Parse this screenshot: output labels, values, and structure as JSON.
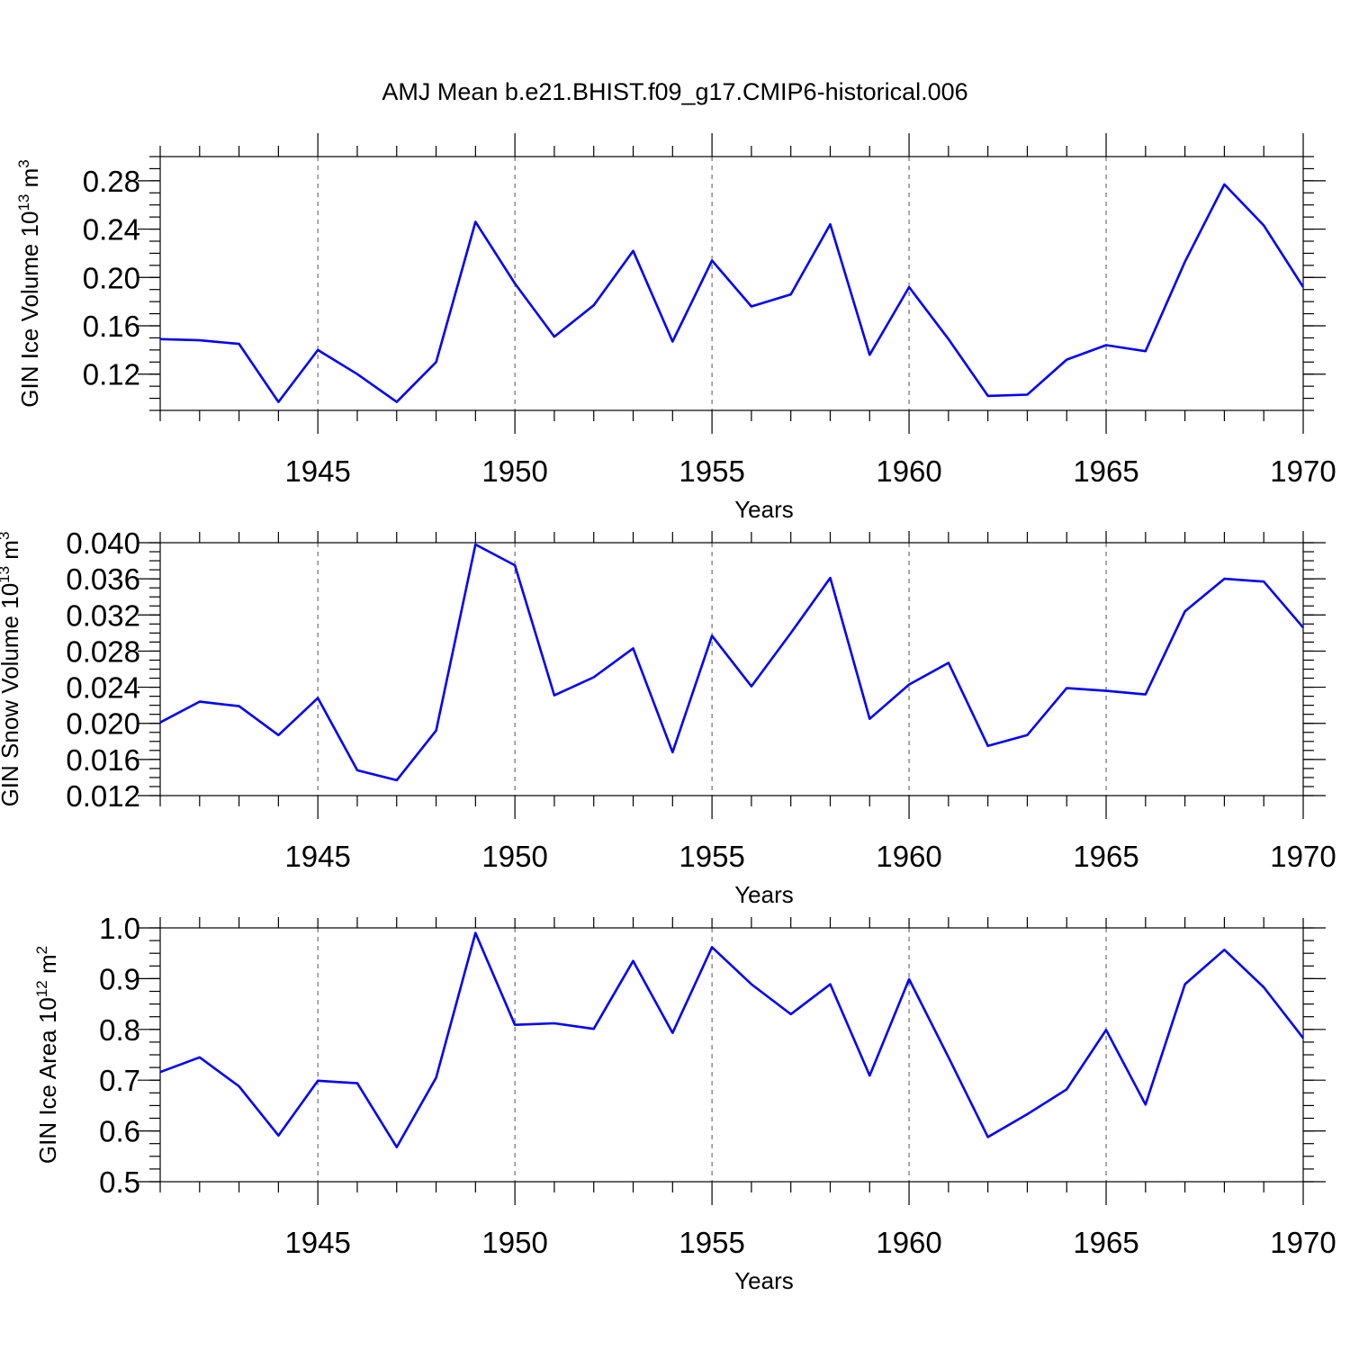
{
  "title": "AMJ Mean b.e21.BHIST.f09_g17.CMIP6-historical.006",
  "chart_data": [
    {
      "type": "line",
      "name": "ice-volume",
      "ylabel": "GIN Ice Volume 10",
      "ylabel_exp": "13",
      "ylabel_unit": " m",
      "ylabel_unit_exp": "3",
      "xlabel": "Years",
      "xlim": [
        1941,
        1970
      ],
      "ylim": [
        0.09,
        0.3
      ],
      "xticks": [
        "1945",
        "1950",
        "1955",
        "1960",
        "1965",
        "1970"
      ],
      "yticks": [
        "0.12",
        "0.16",
        "0.20",
        "0.24",
        "0.28"
      ],
      "grid": "vertical-dashed",
      "series": [
        {
          "name": "GIN Ice Volume",
          "color": "#0000ff",
          "x": [
            1941,
            1942,
            1943,
            1944,
            1945,
            1946,
            1947,
            1948,
            1949,
            1950,
            1951,
            1952,
            1953,
            1954,
            1955,
            1956,
            1957,
            1958,
            1959,
            1960,
            1961,
            1962,
            1963,
            1964,
            1965,
            1966,
            1967,
            1968,
            1969,
            1970
          ],
          "values": [
            0.149,
            0.148,
            0.145,
            0.097,
            0.14,
            0.12,
            0.097,
            0.13,
            0.246,
            0.195,
            0.151,
            0.177,
            0.222,
            0.147,
            0.214,
            0.176,
            0.186,
            0.244,
            0.136,
            0.192,
            0.149,
            0.102,
            0.103,
            0.132,
            0.144,
            0.139,
            0.213,
            0.277,
            0.243,
            0.192
          ]
        }
      ]
    },
    {
      "type": "line",
      "name": "snow-volume",
      "ylabel": "GIN Snow Volume 10",
      "ylabel_exp": "13",
      "ylabel_unit": " m",
      "ylabel_unit_exp": "3",
      "xlabel": "Years",
      "xlim": [
        1941,
        1970
      ],
      "ylim": [
        0.012,
        0.04
      ],
      "xticks": [
        "1945",
        "1950",
        "1955",
        "1960",
        "1965",
        "1970"
      ],
      "yticks": [
        "0.012",
        "0.016",
        "0.020",
        "0.024",
        "0.028",
        "0.032",
        "0.036",
        "0.040"
      ],
      "grid": "vertical-dashed",
      "series": [
        {
          "name": "GIN Snow Volume",
          "color": "#0000ff",
          "x": [
            1941,
            1942,
            1943,
            1944,
            1945,
            1946,
            1947,
            1948,
            1949,
            1950,
            1951,
            1952,
            1953,
            1954,
            1955,
            1956,
            1957,
            1958,
            1959,
            1960,
            1961,
            1962,
            1963,
            1964,
            1965,
            1966,
            1967,
            1968,
            1969,
            1970
          ],
          "values": [
            0.0201,
            0.0224,
            0.0219,
            0.0187,
            0.0228,
            0.0148,
            0.0137,
            0.0192,
            0.0398,
            0.0375,
            0.0231,
            0.0251,
            0.0283,
            0.0168,
            0.0297,
            0.0241,
            0.03,
            0.0361,
            0.0205,
            0.0243,
            0.0267,
            0.0175,
            0.0187,
            0.0239,
            0.0236,
            0.0232,
            0.0324,
            0.036,
            0.0357,
            0.0306
          ]
        }
      ]
    },
    {
      "type": "line",
      "name": "ice-area",
      "ylabel": "GIN Ice Area 10",
      "ylabel_exp": "12",
      "ylabel_unit": " m",
      "ylabel_unit_exp": "2",
      "xlabel": "Years",
      "xlim": [
        1941,
        1970
      ],
      "ylim": [
        0.5,
        1.0
      ],
      "xticks": [
        "1945",
        "1950",
        "1955",
        "1960",
        "1965",
        "1970"
      ],
      "yticks": [
        "0.5",
        "0.6",
        "0.7",
        "0.8",
        "0.9",
        "1.0"
      ],
      "grid": "vertical-dashed",
      "series": [
        {
          "name": "GIN Ice Area",
          "color": "#0000ff",
          "x": [
            1941,
            1942,
            1943,
            1944,
            1945,
            1946,
            1947,
            1948,
            1949,
            1950,
            1951,
            1952,
            1953,
            1954,
            1955,
            1956,
            1957,
            1958,
            1959,
            1960,
            1961,
            1962,
            1963,
            1964,
            1965,
            1966,
            1967,
            1968,
            1969,
            1970
          ],
          "values": [
            0.716,
            0.745,
            0.688,
            0.591,
            0.699,
            0.694,
            0.568,
            0.705,
            0.99,
            0.809,
            0.812,
            0.801,
            0.935,
            0.793,
            0.962,
            0.889,
            0.83,
            0.889,
            0.709,
            0.899,
            0.745,
            0.588,
            0.633,
            0.682,
            0.799,
            0.652,
            0.889,
            0.957,
            0.883,
            0.783
          ]
        }
      ]
    }
  ]
}
